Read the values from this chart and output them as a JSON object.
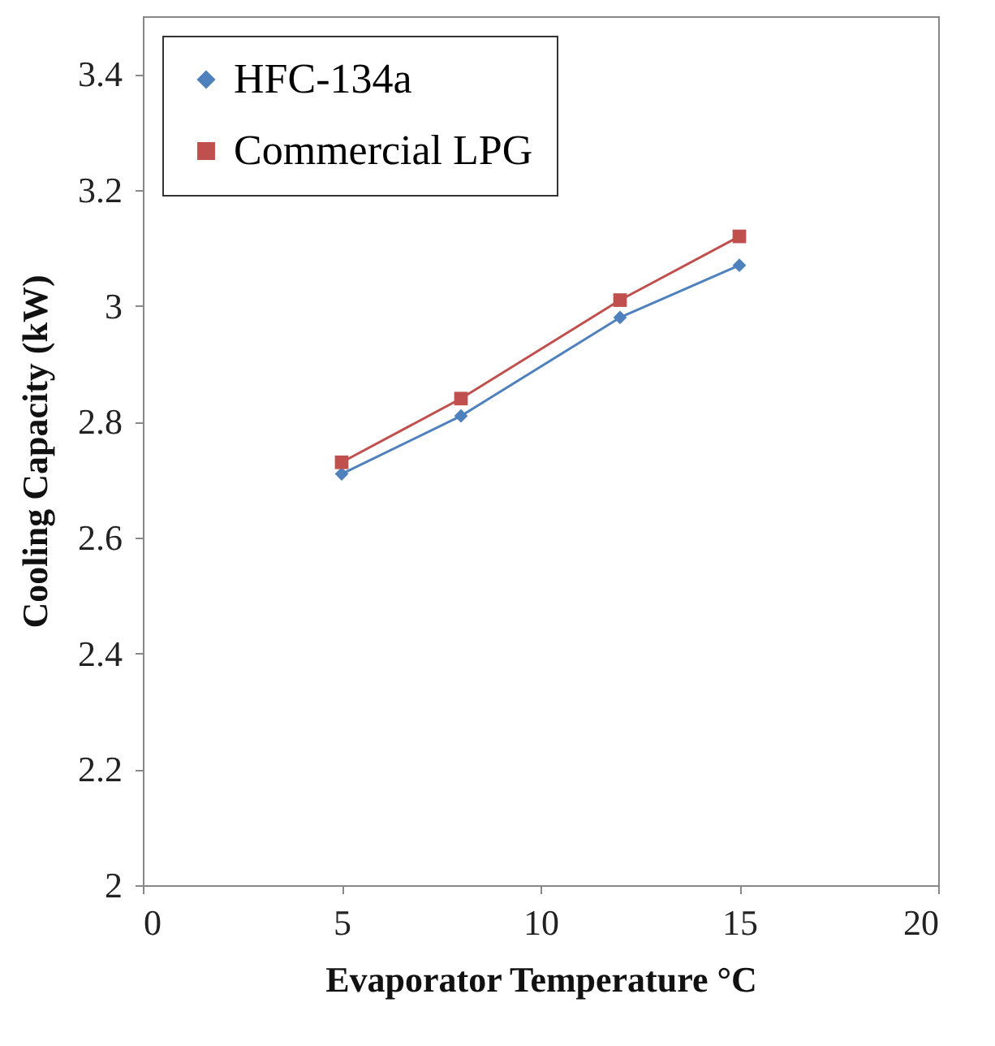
{
  "chart_data": {
    "type": "line",
    "xlabel": "Evaporator Temperature °C",
    "ylabel": "Cooling Capacity (kW)",
    "x": [
      5,
      8,
      12,
      15
    ],
    "series": [
      {
        "name": "HFC-134a",
        "color": "#4f81bd",
        "marker": "diamond",
        "values": [
          2.71,
          2.81,
          2.98,
          3.07
        ]
      },
      {
        "name": "Commercial LPG",
        "color": "#c0504d",
        "marker": "square",
        "values": [
          2.73,
          2.84,
          3.01,
          3.12
        ]
      }
    ],
    "xlim": [
      0,
      20
    ],
    "xticks": [
      0,
      5,
      10,
      15,
      20
    ],
    "ylim": [
      2,
      3.5
    ],
    "yticks": [
      2,
      2.2,
      2.4,
      2.6,
      2.8,
      3,
      3.2,
      3.4
    ],
    "grid": false,
    "legend": "top left",
    "line_style": "solid"
  }
}
